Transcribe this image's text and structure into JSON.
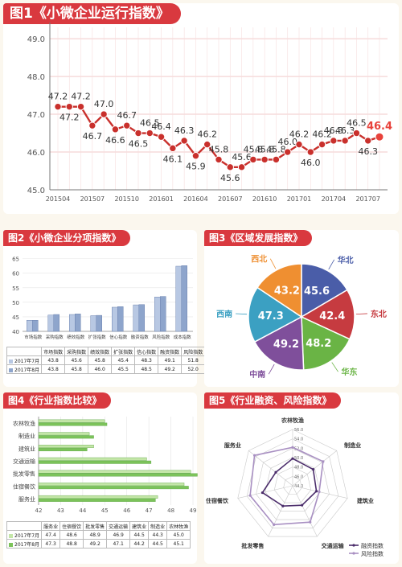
{
  "panel1": {
    "title": "图1《小微企业运行指数》",
    "chart_data": {
      "type": "line",
      "x": [
        "201504",
        "201505",
        "201506",
        "201507",
        "201508",
        "201509",
        "201510",
        "201511",
        "201512",
        "201601",
        "201602",
        "201603",
        "201604",
        "201605",
        "201606",
        "201607",
        "201608",
        "201609",
        "201610",
        "201611",
        "201612",
        "201701",
        "201702",
        "201703",
        "201704",
        "201705",
        "201706",
        "201707",
        "201708"
      ],
      "values": [
        47.2,
        47.2,
        47.2,
        46.7,
        47.0,
        46.6,
        46.7,
        46.5,
        46.5,
        46.4,
        46.1,
        46.3,
        45.9,
        46.2,
        45.8,
        45.6,
        45.6,
        45.8,
        45.8,
        45.8,
        46.0,
        46.2,
        46.0,
        46.2,
        46.3,
        46.3,
        46.5,
        46.3,
        46.4
      ],
      "xticks": [
        "201504",
        "201507",
        "201510",
        "201601",
        "201604",
        "201607",
        "201610",
        "201701",
        "201704",
        "201707"
      ],
      "yticks": [
        "45.0",
        "46.0",
        "47.0",
        "48.0",
        "49.0"
      ],
      "ylim": [
        45.0,
        49.3
      ],
      "highlight_last": true,
      "colors": {
        "line": "#c9302c",
        "highlight": "#e8423b"
      }
    }
  },
  "panel2": {
    "title": "图2《小微企业分项指数》",
    "chart_data": {
      "type": "bar",
      "categories": [
        "市场指数",
        "采购指数",
        "绩效指数",
        "扩张指数",
        "信心指数",
        "融资指数",
        "风险指数",
        "成本指数"
      ],
      "series": [
        {
          "name": "2017年7月",
          "values": [
            43.8,
            45.6,
            45.8,
            45.4,
            48.3,
            49.1,
            51.8,
            62.4
          ]
        },
        {
          "name": "2017年8月",
          "values": [
            43.8,
            45.8,
            46.0,
            45.5,
            48.5,
            49.2,
            52.0,
            62.6
          ]
        }
      ],
      "yticks": [
        "40",
        "45",
        "50",
        "55",
        "60",
        "65"
      ],
      "ylim": [
        40,
        66
      ],
      "legend": "table-below",
      "colors": [
        "#b8c8e3",
        "#8ea5cc"
      ]
    }
  },
  "panel3": {
    "title": "图3《区域发展指数》",
    "chart_data": {
      "type": "pie",
      "slices": [
        {
          "label": "华北",
          "value": 45.6,
          "color": "#4a5da8"
        },
        {
          "label": "东北",
          "value": 42.4,
          "color": "#c63b40"
        },
        {
          "label": "华东",
          "value": 48.2,
          "color": "#6ab445"
        },
        {
          "label": "中南",
          "value": 49.2,
          "color": "#7f4f9b"
        },
        {
          "label": "西南",
          "value": 47.3,
          "color": "#3ba0c2"
        },
        {
          "label": "西北",
          "value": 43.2,
          "color": "#ef8f31"
        }
      ]
    }
  },
  "panel4": {
    "title": "图4《行业指数比较》",
    "chart_data": {
      "type": "bar",
      "orientation": "horizontal",
      "categories": [
        "农林牧渔",
        "制造业",
        "建筑业",
        "交通运输",
        "批发零售",
        "住宿餐饮",
        "服务业"
      ],
      "series": [
        {
          "name": "2017年7月",
          "values": [
            45.0,
            44.3,
            44.5,
            46.9,
            48.9,
            48.6,
            47.4
          ]
        },
        {
          "name": "2017年8月",
          "values": [
            45.1,
            44.5,
            44.2,
            47.1,
            49.2,
            48.8,
            47.3
          ]
        }
      ],
      "xticks": [
        "42",
        "43",
        "44",
        "45",
        "46",
        "47",
        "48",
        "49"
      ],
      "xlim": [
        42,
        49
      ],
      "table_columns": [
        "服务业",
        "住宿餐饮",
        "批发零售",
        "交通运输",
        "建筑业",
        "制造业",
        "农林牧渔"
      ],
      "colors": [
        "#c4e6a8",
        "#7cc35a"
      ]
    }
  },
  "panel5": {
    "title": "图5《行业融资、风险指数》",
    "chart_data": {
      "type": "radar",
      "axes": [
        "农林牧渔",
        "制造业",
        "建筑业",
        "交通运输",
        "批发零售",
        "住宿餐饮",
        "服务业"
      ],
      "series": [
        {
          "name": "融资指数",
          "values": [
            49.8,
            49.6,
            49.2,
            48.6,
            48.8,
            50.6,
            48.6
          ]
        },
        {
          "name": "风险指数",
          "values": [
            52.2,
            52.3,
            49.8,
            52.6,
            53.2,
            53.3,
            54.4
          ]
        }
      ],
      "rticks": [
        "44.0",
        "46.0",
        "48.0",
        "50.0",
        "52.0",
        "54.0",
        "56.0"
      ],
      "rlim": [
        44,
        56
      ],
      "legend": "bottom-right",
      "colors": [
        "#4b2d6b",
        "#a88fc2"
      ]
    }
  }
}
